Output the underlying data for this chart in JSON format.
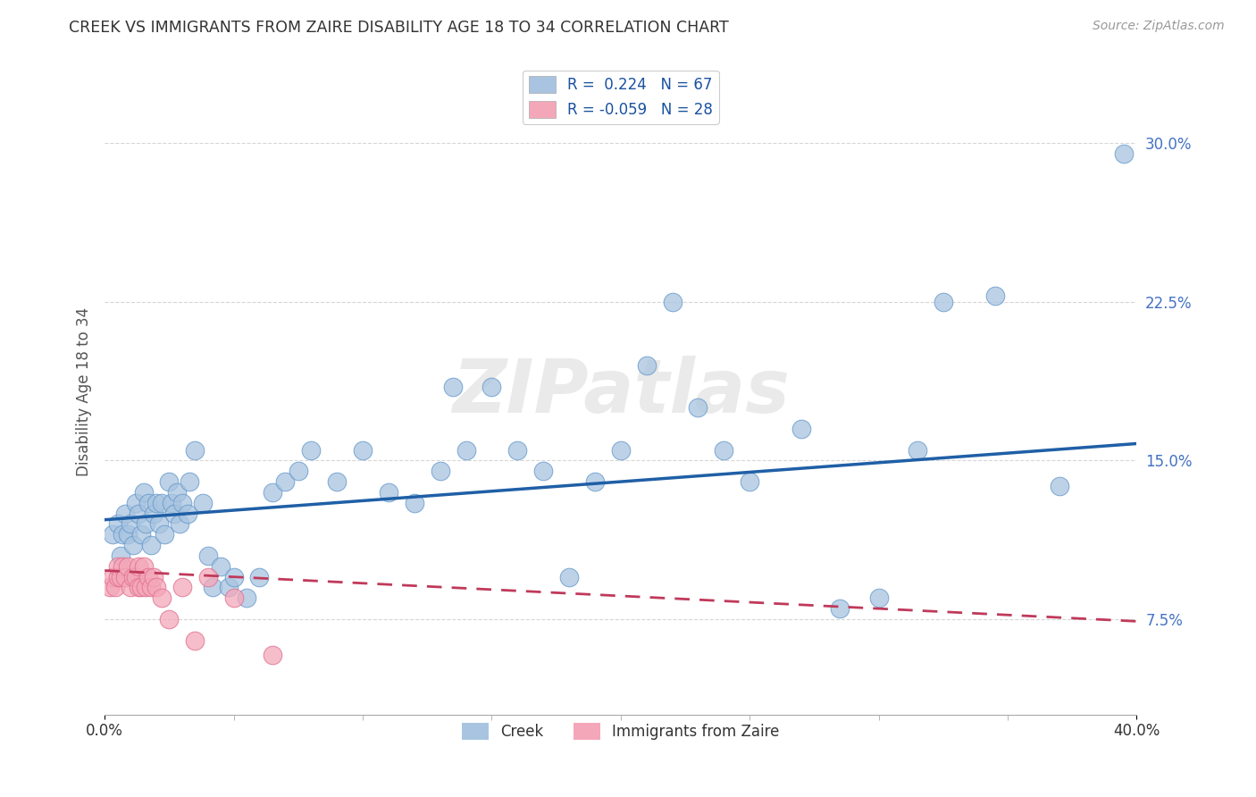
{
  "title": "CREEK VS IMMIGRANTS FROM ZAIRE DISABILITY AGE 18 TO 34 CORRELATION CHART",
  "source": "Source: ZipAtlas.com",
  "ylabel": "Disability Age 18 to 34",
  "ytick_labels": [
    "7.5%",
    "15.0%",
    "22.5%",
    "30.0%"
  ],
  "ytick_values": [
    0.075,
    0.15,
    0.225,
    0.3
  ],
  "xlim": [
    0.0,
    0.4
  ],
  "ylim": [
    0.03,
    0.335
  ],
  "xtick_vals": [
    0.0,
    0.4
  ],
  "xtick_labels": [
    "0.0%",
    "40.0%"
  ],
  "legend_creek_r": "R =  0.224",
  "legend_creek_n": "N = 67",
  "legend_zaire_r": "R = -0.059",
  "legend_zaire_n": "N = 28",
  "watermark": "ZIPatlas",
  "creek_color": "#a8c4e0",
  "creek_edge_color": "#6699cc",
  "creek_line_color": "#1f5fa6",
  "zaire_color": "#f4a7b9",
  "zaire_edge_color": "#e07090",
  "zaire_line_color": "#c0395a",
  "background_color": "#ffffff",
  "creek_points_x": [
    0.003,
    0.005,
    0.006,
    0.007,
    0.008,
    0.009,
    0.01,
    0.011,
    0.012,
    0.013,
    0.014,
    0.015,
    0.016,
    0.017,
    0.018,
    0.019,
    0.02,
    0.021,
    0.022,
    0.023,
    0.025,
    0.026,
    0.027,
    0.028,
    0.029,
    0.03,
    0.032,
    0.033,
    0.035,
    0.038,
    0.04,
    0.042,
    0.045,
    0.048,
    0.05,
    0.055,
    0.06,
    0.065,
    0.07,
    0.075,
    0.08,
    0.09,
    0.1,
    0.11,
    0.12,
    0.13,
    0.135,
    0.14,
    0.15,
    0.16,
    0.17,
    0.18,
    0.19,
    0.2,
    0.21,
    0.22,
    0.23,
    0.24,
    0.25,
    0.27,
    0.285,
    0.3,
    0.315,
    0.325,
    0.345,
    0.37,
    0.395
  ],
  "creek_points_y": [
    0.115,
    0.12,
    0.105,
    0.115,
    0.125,
    0.115,
    0.12,
    0.11,
    0.13,
    0.125,
    0.115,
    0.135,
    0.12,
    0.13,
    0.11,
    0.125,
    0.13,
    0.12,
    0.13,
    0.115,
    0.14,
    0.13,
    0.125,
    0.135,
    0.12,
    0.13,
    0.125,
    0.14,
    0.155,
    0.13,
    0.105,
    0.09,
    0.1,
    0.09,
    0.095,
    0.085,
    0.095,
    0.135,
    0.14,
    0.145,
    0.155,
    0.14,
    0.155,
    0.135,
    0.13,
    0.145,
    0.185,
    0.155,
    0.185,
    0.155,
    0.145,
    0.095,
    0.14,
    0.155,
    0.195,
    0.225,
    0.175,
    0.155,
    0.14,
    0.165,
    0.08,
    0.085,
    0.155,
    0.225,
    0.228,
    0.138,
    0.295
  ],
  "zaire_points_x": [
    0.002,
    0.003,
    0.004,
    0.005,
    0.005,
    0.006,
    0.007,
    0.008,
    0.009,
    0.01,
    0.011,
    0.012,
    0.013,
    0.013,
    0.014,
    0.015,
    0.016,
    0.017,
    0.018,
    0.019,
    0.02,
    0.022,
    0.025,
    0.03,
    0.035,
    0.04,
    0.05,
    0.065
  ],
  "zaire_points_y": [
    0.09,
    0.095,
    0.09,
    0.095,
    0.1,
    0.095,
    0.1,
    0.095,
    0.1,
    0.09,
    0.095,
    0.095,
    0.09,
    0.1,
    0.09,
    0.1,
    0.09,
    0.095,
    0.09,
    0.095,
    0.09,
    0.085,
    0.075,
    0.09,
    0.065,
    0.095,
    0.085,
    0.058
  ],
  "creek_line_x": [
    0.0,
    0.4
  ],
  "creek_line_y": [
    0.122,
    0.158
  ],
  "zaire_line_x": [
    0.0,
    0.4
  ],
  "zaire_line_y": [
    0.098,
    0.074
  ]
}
